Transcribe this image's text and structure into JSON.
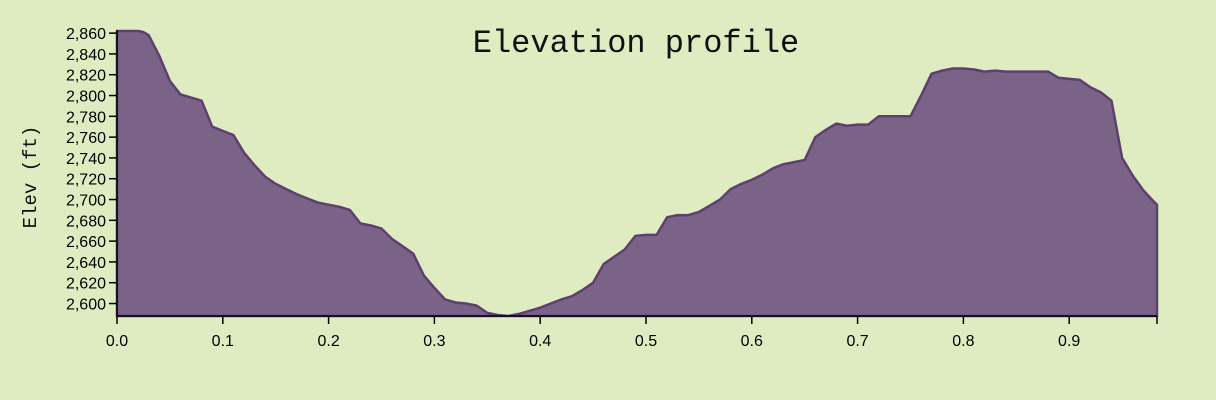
{
  "chart_data": {
    "type": "area",
    "title": "Elevation profile",
    "xlabel": "",
    "ylabel": "Elev (ft)",
    "xlim": [
      0,
      0.983
    ],
    "ylim": [
      2588,
      2863
    ],
    "grid": false,
    "x_ticks": [
      0.0,
      0.1,
      0.2,
      0.3,
      0.4,
      0.5,
      0.6,
      0.7,
      0.8,
      0.9
    ],
    "x_tick_labels": [
      "0.0",
      "0.1",
      "0.2",
      "0.3",
      "0.4",
      "0.5",
      "0.6",
      "0.7",
      "0.8",
      "0.9"
    ],
    "y_ticks": [
      2600,
      2620,
      2640,
      2660,
      2680,
      2700,
      2720,
      2740,
      2760,
      2780,
      2800,
      2820,
      2840,
      2860
    ],
    "y_tick_labels": [
      "2,600",
      "2,620",
      "2,640",
      "2,660",
      "2,680",
      "2,700",
      "2,720",
      "2,740",
      "2,760",
      "2,780",
      "2,800",
      "2,820",
      "2,840",
      "2,860"
    ],
    "color": "#7b6388",
    "stroke_color": "#5e4070",
    "background": "#dfecc1",
    "x": [
      0.0,
      0.02,
      0.025,
      0.03,
      0.04,
      0.05,
      0.06,
      0.07,
      0.08,
      0.09,
      0.1,
      0.11,
      0.12,
      0.13,
      0.14,
      0.15,
      0.16,
      0.17,
      0.18,
      0.19,
      0.2,
      0.21,
      0.22,
      0.23,
      0.24,
      0.25,
      0.26,
      0.27,
      0.28,
      0.29,
      0.3,
      0.31,
      0.32,
      0.33,
      0.34,
      0.35,
      0.36,
      0.37,
      0.38,
      0.39,
      0.4,
      0.41,
      0.42,
      0.43,
      0.44,
      0.45,
      0.46,
      0.47,
      0.48,
      0.49,
      0.5,
      0.51,
      0.52,
      0.53,
      0.54,
      0.55,
      0.56,
      0.57,
      0.58,
      0.59,
      0.6,
      0.61,
      0.62,
      0.63,
      0.64,
      0.65,
      0.66,
      0.67,
      0.68,
      0.69,
      0.7,
      0.71,
      0.72,
      0.73,
      0.74,
      0.75,
      0.76,
      0.77,
      0.78,
      0.79,
      0.8,
      0.81,
      0.82,
      0.83,
      0.84,
      0.85,
      0.86,
      0.87,
      0.88,
      0.89,
      0.9,
      0.91,
      0.92,
      0.93,
      0.94,
      0.95,
      0.96,
      0.97,
      0.98,
      0.983
    ],
    "y": [
      2862,
      2862,
      2861,
      2858,
      2838,
      2814,
      2801,
      2798,
      2795,
      2770,
      2766,
      2762,
      2745,
      2733,
      2722,
      2715,
      2710,
      2705,
      2701,
      2697,
      2695,
      2693,
      2690,
      2677,
      2675,
      2672,
      2662,
      2655,
      2648,
      2627,
      2615,
      2604,
      2601,
      2600,
      2598,
      2591,
      2589,
      2588,
      2590,
      2593,
      2596,
      2600,
      2604,
      2607,
      2613,
      2620,
      2638,
      2645,
      2652,
      2665,
      2666,
      2666,
      2683,
      2685,
      2685,
      2688,
      2694,
      2700,
      2710,
      2715,
      2719,
      2724,
      2730,
      2734,
      2736,
      2738,
      2760,
      2767,
      2773,
      2771,
      2772,
      2772,
      2780,
      2780,
      2780,
      2780,
      2800,
      2821,
      2824,
      2826,
      2826,
      2825,
      2823,
      2824,
      2823,
      2823,
      2823,
      2823,
      2823,
      2817,
      2816,
      2815,
      2808,
      2803,
      2795,
      2740,
      2723,
      2709,
      2698,
      2695
    ]
  }
}
